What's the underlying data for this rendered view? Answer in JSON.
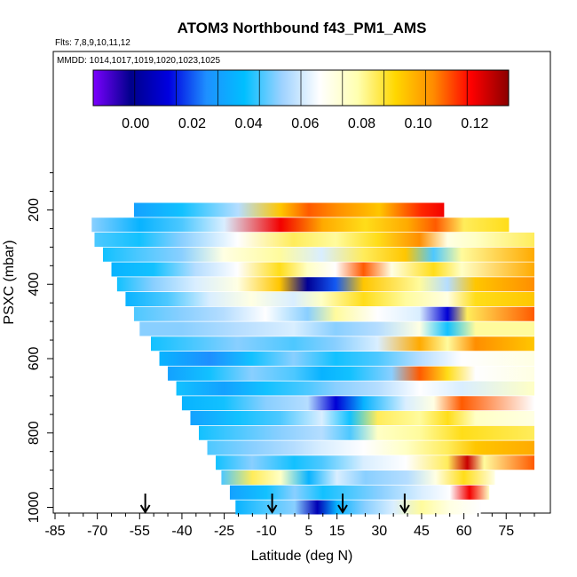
{
  "chart_data": {
    "type": "heatmap",
    "title": "ATOM3 Northbound f43_PM1_AMS",
    "flights_label": "Flts: 7,8,9,10,11,12",
    "dates_label": "MMDD: 1014,1017,1019,1020,1023,1025",
    "xlabel": "Latitude (deg N)",
    "ylabel": "PSXC (mbar)",
    "xlim": [
      -85,
      85
    ],
    "ylim": [
      1010,
      50
    ],
    "x_ticks": [
      -85,
      -70,
      -55,
      -40,
      -25,
      -10,
      5,
      15,
      30,
      45,
      60,
      75
    ],
    "y_ticks": [
      200,
      400,
      600,
      800,
      1000
    ],
    "colorbar": {
      "range": [
        -0.015,
        0.132
      ],
      "ticks": [
        "0.00",
        "0.02",
        "0.04",
        "0.06",
        "0.08",
        "0.10",
        "0.12"
      ],
      "tick_values": [
        0.0,
        0.02,
        0.04,
        0.06,
        0.08,
        0.1,
        0.12
      ],
      "colors": [
        "#7B00FF",
        "#00008B",
        "#0000E0",
        "#1E90FF",
        "#00BFFF",
        "#9ED2FF",
        "#FFFFFF",
        "#FFFFB0",
        "#FFD700",
        "#FF8C00",
        "#FF0000",
        "#8B0000"
      ]
    },
    "arrow_latitudes": [
      -53,
      -8,
      17,
      39
    ],
    "layers": [
      {
        "p": 200,
        "lat": [
          -57,
          53
        ],
        "segments": [
          [
            -57,
            0.03
          ],
          [
            -40,
            0.04
          ],
          [
            -20,
            0.055
          ],
          [
            -5,
            0.095
          ],
          [
            5,
            0.11
          ],
          [
            15,
            0.105
          ],
          [
            30,
            0.095
          ],
          [
            45,
            0.115
          ],
          [
            53,
            0.12
          ]
        ]
      },
      {
        "p": 240,
        "lat": [
          -72,
          76
        ],
        "segments": [
          [
            -72,
            0.05
          ],
          [
            -55,
            0.035
          ],
          [
            -40,
            0.045
          ],
          [
            -25,
            0.06
          ],
          [
            -5,
            0.12
          ],
          [
            10,
            0.1
          ],
          [
            25,
            0.09
          ],
          [
            40,
            0.1
          ],
          [
            50,
            0.11
          ],
          [
            60,
            0.085
          ],
          [
            76,
            0.09
          ]
        ]
      },
      {
        "p": 280,
        "lat": [
          -71,
          86
        ],
        "segments": [
          [
            -71,
            0.045
          ],
          [
            -55,
            0.04
          ],
          [
            -40,
            0.05
          ],
          [
            -20,
            0.065
          ],
          [
            0,
            0.085
          ],
          [
            15,
            0.08
          ],
          [
            30,
            0.09
          ],
          [
            45,
            0.105
          ],
          [
            55,
            0.07
          ],
          [
            65,
            0.075
          ],
          [
            86,
            0.085
          ]
        ]
      },
      {
        "p": 320,
        "lat": [
          -68,
          86
        ],
        "segments": [
          [
            -68,
            0.04
          ],
          [
            -55,
            0.045
          ],
          [
            -40,
            0.05
          ],
          [
            -25,
            0.07
          ],
          [
            -5,
            0.08
          ],
          [
            10,
            0.06
          ],
          [
            25,
            0.085
          ],
          [
            40,
            0.095
          ],
          [
            50,
            0.045
          ],
          [
            60,
            0.08
          ],
          [
            86,
            0.1
          ]
        ]
      },
      {
        "p": 360,
        "lat": [
          -65,
          86
        ],
        "segments": [
          [
            -65,
            0.035
          ],
          [
            -50,
            0.04
          ],
          [
            -35,
            0.055
          ],
          [
            -20,
            0.065
          ],
          [
            -5,
            0.09
          ],
          [
            5,
            0.075
          ],
          [
            15,
            0.065
          ],
          [
            25,
            0.11
          ],
          [
            35,
            0.07
          ],
          [
            50,
            0.09
          ],
          [
            60,
            0.075
          ],
          [
            86,
            0.1
          ]
        ]
      },
      {
        "p": 400,
        "lat": [
          -63,
          86
        ],
        "segments": [
          [
            -63,
            0.04
          ],
          [
            -50,
            0.05
          ],
          [
            -35,
            0.06
          ],
          [
            -20,
            0.07
          ],
          [
            -5,
            0.095
          ],
          [
            5,
            0.0
          ],
          [
            15,
            0.02
          ],
          [
            25,
            0.095
          ],
          [
            45,
            0.08
          ],
          [
            55,
            0.055
          ],
          [
            65,
            0.095
          ],
          [
            86,
            0.105
          ]
        ]
      },
      {
        "p": 440,
        "lat": [
          -60,
          86
        ],
        "segments": [
          [
            -60,
            0.035
          ],
          [
            -45,
            0.045
          ],
          [
            -30,
            0.06
          ],
          [
            -15,
            0.07
          ],
          [
            0,
            0.06
          ],
          [
            10,
            0.075
          ],
          [
            25,
            0.09
          ],
          [
            40,
            0.08
          ],
          [
            55,
            0.07
          ],
          [
            65,
            0.09
          ],
          [
            86,
            0.095
          ]
        ]
      },
      {
        "p": 480,
        "lat": [
          -57,
          86
        ],
        "segments": [
          [
            -57,
            0.045
          ],
          [
            -40,
            0.05
          ],
          [
            -25,
            0.055
          ],
          [
            -10,
            0.065
          ],
          [
            5,
            0.05
          ],
          [
            15,
            0.08
          ],
          [
            30,
            0.065
          ],
          [
            45,
            0.06
          ],
          [
            55,
            0.01
          ],
          [
            62,
            0.085
          ],
          [
            86,
            0.11
          ]
        ]
      },
      {
        "p": 520,
        "lat": [
          -55,
          86
        ],
        "segments": [
          [
            -55,
            0.05
          ],
          [
            -40,
            0.05
          ],
          [
            -20,
            0.055
          ],
          [
            0,
            0.06
          ],
          [
            15,
            0.05
          ],
          [
            30,
            0.055
          ],
          [
            45,
            0.07
          ],
          [
            55,
            0.04
          ],
          [
            65,
            0.08
          ],
          [
            86,
            0.08
          ]
        ]
      },
      {
        "p": 560,
        "lat": [
          -51,
          86
        ],
        "segments": [
          [
            -51,
            0.04
          ],
          [
            -35,
            0.045
          ],
          [
            -20,
            0.05
          ],
          [
            0,
            0.045
          ],
          [
            15,
            0.05
          ],
          [
            30,
            0.06
          ],
          [
            45,
            0.1
          ],
          [
            55,
            0.08
          ],
          [
            65,
            0.105
          ],
          [
            86,
            0.095
          ]
        ]
      },
      {
        "p": 600,
        "lat": [
          -48,
          86
        ],
        "segments": [
          [
            -48,
            0.035
          ],
          [
            -30,
            0.025
          ],
          [
            -15,
            0.04
          ],
          [
            0,
            0.05
          ],
          [
            15,
            0.04
          ],
          [
            30,
            0.045
          ],
          [
            45,
            0.055
          ],
          [
            60,
            0.065
          ],
          [
            86,
            0.07
          ]
        ]
      },
      {
        "p": 640,
        "lat": [
          -45,
          86
        ],
        "segments": [
          [
            -45,
            0.03
          ],
          [
            -30,
            0.04
          ],
          [
            -15,
            0.05
          ],
          [
            0,
            0.045
          ],
          [
            10,
            0.035
          ],
          [
            20,
            0.04
          ],
          [
            35,
            0.05
          ],
          [
            45,
            0.11
          ],
          [
            55,
            0.09
          ],
          [
            65,
            0.065
          ],
          [
            86,
            0.07
          ]
        ]
      },
      {
        "p": 680,
        "lat": [
          -42,
          86
        ],
        "segments": [
          [
            -42,
            0.04
          ],
          [
            -25,
            0.03
          ],
          [
            -10,
            0.04
          ],
          [
            5,
            0.045
          ],
          [
            15,
            0.05
          ],
          [
            30,
            0.055
          ],
          [
            45,
            0.065
          ],
          [
            60,
            0.06
          ],
          [
            86,
            0.075
          ]
        ]
      },
      {
        "p": 720,
        "lat": [
          -40,
          86
        ],
        "segments": [
          [
            -40,
            0.035
          ],
          [
            -25,
            0.04
          ],
          [
            -10,
            0.05
          ],
          [
            5,
            0.055
          ],
          [
            15,
            0.01
          ],
          [
            25,
            0.035
          ],
          [
            40,
            0.06
          ],
          [
            50,
            0.07
          ],
          [
            60,
            0.11
          ],
          [
            86,
            0.065
          ]
        ]
      },
      {
        "p": 760,
        "lat": [
          -37,
          86
        ],
        "segments": [
          [
            -37,
            0.03
          ],
          [
            -20,
            0.04
          ],
          [
            -5,
            0.045
          ],
          [
            10,
            0.06
          ],
          [
            20,
            0.04
          ],
          [
            30,
            0.085
          ],
          [
            45,
            0.08
          ],
          [
            55,
            0.09
          ],
          [
            65,
            0.075
          ],
          [
            86,
            0.07
          ]
        ]
      },
      {
        "p": 800,
        "lat": [
          -34,
          86
        ],
        "segments": [
          [
            -34,
            0.04
          ],
          [
            -20,
            0.045
          ],
          [
            -5,
            0.05
          ],
          [
            10,
            0.055
          ],
          [
            20,
            0.045
          ],
          [
            30,
            0.075
          ],
          [
            45,
            0.08
          ],
          [
            60,
            0.09
          ],
          [
            86,
            0.085
          ]
        ]
      },
      {
        "p": 840,
        "lat": [
          -31,
          86
        ],
        "segments": [
          [
            -31,
            0.045
          ],
          [
            -15,
            0.05
          ],
          [
            0,
            0.055
          ],
          [
            10,
            0.06
          ],
          [
            25,
            0.065
          ],
          [
            40,
            0.075
          ],
          [
            55,
            0.085
          ],
          [
            65,
            0.095
          ],
          [
            86,
            0.1
          ]
        ]
      },
      {
        "p": 880,
        "lat": [
          -28,
          86
        ],
        "segments": [
          [
            -28,
            0.04
          ],
          [
            -15,
            0.05
          ],
          [
            0,
            0.04
          ],
          [
            10,
            0.045
          ],
          [
            25,
            0.06
          ],
          [
            40,
            0.065
          ],
          [
            55,
            0.085
          ],
          [
            62,
            0.125
          ],
          [
            68,
            0.08
          ],
          [
            86,
            0.11
          ]
        ]
      },
      {
        "p": 920,
        "lat": [
          -26,
          71
        ],
        "segments": [
          [
            -26,
            0.045
          ],
          [
            -15,
            0.085
          ],
          [
            -5,
            0.075
          ],
          [
            5,
            0.035
          ],
          [
            15,
            0.06
          ],
          [
            25,
            0.05
          ],
          [
            40,
            0.055
          ],
          [
            50,
            0.07
          ],
          [
            60,
            0.09
          ],
          [
            71,
            0.07
          ]
        ]
      },
      {
        "p": 960,
        "lat": [
          -23,
          69
        ],
        "segments": [
          [
            -23,
            0.03
          ],
          [
            -10,
            0.04
          ],
          [
            0,
            0.05
          ],
          [
            10,
            0.04
          ],
          [
            20,
            0.045
          ],
          [
            30,
            0.05
          ],
          [
            45,
            0.06
          ],
          [
            55,
            0.065
          ],
          [
            62,
            0.12
          ],
          [
            69,
            0.075
          ]
        ]
      },
      {
        "p": 1000,
        "lat": [
          -21,
          66
        ],
        "segments": [
          [
            -21,
            0.035
          ],
          [
            -10,
            0.045
          ],
          [
            0,
            0.05
          ],
          [
            8,
            0.005
          ],
          [
            15,
            0.035
          ],
          [
            25,
            0.05
          ],
          [
            35,
            0.06
          ],
          [
            45,
            0.08
          ],
          [
            55,
            0.07
          ],
          [
            66,
            0.065
          ]
        ]
      }
    ]
  }
}
